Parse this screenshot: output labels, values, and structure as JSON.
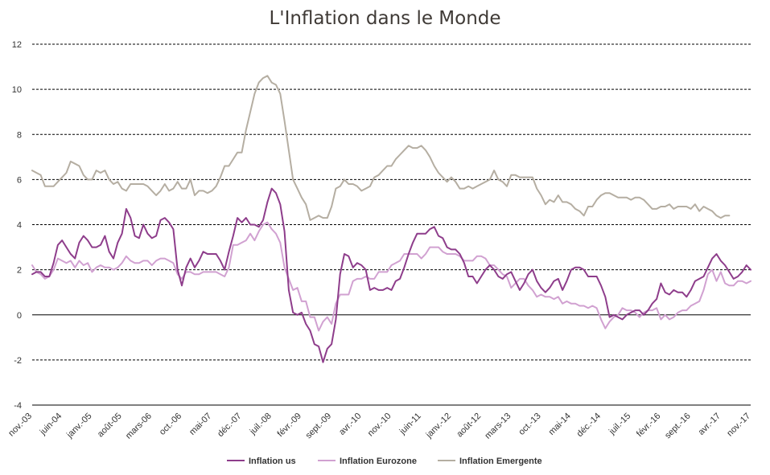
{
  "chart_data": {
    "type": "line",
    "title": "L'Inflation dans le Monde",
    "xlabel": "",
    "ylabel": "",
    "ylim": [
      -4,
      12
    ],
    "yticks": [
      "-4",
      "-2",
      "0",
      "2",
      "4",
      "6",
      "8",
      "10",
      "12"
    ],
    "grid": "horizontal dashed",
    "legend_position": "bottom",
    "x_start": "2003-11",
    "x_end": "2017-11",
    "tick_labels": [
      "nov.-03",
      "juin-04",
      "janv.-05",
      "août-05",
      "mars-06",
      "oct.-06",
      "mai-07",
      "déc.-07",
      "juil.-08",
      "févr.-09",
      "sept.-09",
      "avr.-10",
      "nov.-10",
      "juin-11",
      "janv.-12",
      "août-12",
      "mars-13",
      "oct.-13",
      "mai-14",
      "déc.-14",
      "juil.-15",
      "févr.-16",
      "sept.-16",
      "avr.-17",
      "nov.-17"
    ],
    "series": [
      {
        "name": "Inflation us",
        "color": "#8e3d8b",
        "values": [
          1.8,
          1.9,
          1.9,
          1.7,
          1.7,
          2.3,
          3.1,
          3.3,
          3.0,
          2.7,
          2.5,
          3.2,
          3.5,
          3.3,
          3.0,
          3.0,
          3.1,
          3.5,
          2.8,
          2.5,
          3.2,
          3.6,
          4.7,
          4.3,
          3.5,
          3.4,
          4.0,
          3.6,
          3.4,
          3.5,
          4.2,
          4.3,
          4.1,
          3.8,
          2.0,
          1.3,
          2.1,
          2.5,
          2.1,
          2.4,
          2.8,
          2.7,
          2.7,
          2.7,
          2.4,
          2.0,
          2.8,
          3.5,
          4.3,
          4.1,
          4.3,
          4.0,
          4.0,
          3.9,
          4.2,
          5.0,
          5.6,
          5.4,
          4.9,
          3.7,
          1.1,
          0.1,
          0.0,
          0.1,
          -0.4,
          -0.7,
          -1.3,
          -1.4,
          -2.1,
          -1.5,
          -1.3,
          -0.2,
          1.8,
          2.7,
          2.6,
          2.1,
          2.3,
          2.2,
          2.0,
          1.1,
          1.2,
          1.1,
          1.1,
          1.2,
          1.1,
          1.5,
          1.6,
          2.1,
          2.7,
          3.2,
          3.6,
          3.6,
          3.6,
          3.8,
          3.9,
          3.5,
          3.4,
          3.0,
          2.9,
          2.9,
          2.7,
          2.3,
          1.7,
          1.7,
          1.4,
          1.7,
          2.0,
          2.2,
          2.0,
          1.7,
          1.6,
          1.8,
          1.9,
          1.5,
          1.1,
          1.4,
          1.8,
          2.0,
          1.5,
          1.2,
          1.0,
          1.2,
          1.5,
          1.6,
          1.1,
          1.5,
          2.0,
          2.1,
          2.1,
          2.0,
          1.7,
          1.7,
          1.7,
          1.3,
          0.8,
          -0.1,
          0.0,
          -0.1,
          -0.2,
          0.0,
          0.1,
          0.2,
          0.2,
          0.0,
          0.2,
          0.5,
          0.7,
          1.4,
          1.0,
          0.9,
          1.1,
          1.0,
          1.0,
          0.8,
          1.1,
          1.5,
          1.6,
          1.7,
          2.1,
          2.5,
          2.7,
          2.4,
          2.2,
          1.9,
          1.6,
          1.7,
          1.9,
          2.2,
          2.0
        ]
      },
      {
        "name": "Inflation Eurozone",
        "color": "#d1a1d1",
        "values": [
          2.2,
          1.9,
          1.8,
          1.6,
          1.7,
          2.0,
          2.5,
          2.4,
          2.3,
          2.4,
          2.1,
          2.4,
          2.2,
          2.3,
          1.9,
          2.1,
          2.2,
          2.1,
          2.1,
          2.0,
          2.1,
          2.3,
          2.6,
          2.4,
          2.3,
          2.3,
          2.4,
          2.4,
          2.2,
          2.4,
          2.5,
          2.5,
          2.4,
          2.3,
          1.8,
          1.6,
          1.9,
          1.9,
          1.8,
          1.8,
          1.9,
          1.9,
          1.9,
          1.9,
          1.8,
          1.7,
          2.1,
          3.1,
          3.1,
          3.2,
          3.3,
          3.6,
          3.3,
          3.7,
          4.0,
          4.1,
          3.8,
          3.6,
          3.2,
          2.1,
          1.6,
          1.1,
          1.2,
          0.6,
          0.6,
          -0.1,
          -0.1,
          -0.7,
          -0.3,
          -0.1,
          -0.4,
          0.5,
          0.9,
          0.9,
          0.9,
          1.5,
          1.6,
          1.6,
          1.7,
          1.6,
          1.6,
          1.9,
          1.9,
          1.9,
          2.2,
          2.3,
          2.4,
          2.7,
          2.7,
          2.7,
          2.7,
          2.5,
          2.7,
          3.0,
          3.0,
          3.0,
          2.8,
          2.7,
          2.7,
          2.7,
          2.6,
          2.4,
          2.4,
          2.4,
          2.6,
          2.6,
          2.5,
          2.2,
          2.2,
          2.0,
          1.8,
          1.7,
          1.2,
          1.4,
          1.6,
          1.6,
          1.3,
          1.1,
          0.8,
          0.9,
          0.8,
          0.8,
          0.7,
          0.8,
          0.5,
          0.6,
          0.5,
          0.5,
          0.4,
          0.4,
          0.3,
          0.4,
          0.3,
          -0.2,
          -0.6,
          -0.3,
          -0.1,
          0.0,
          0.3,
          0.2,
          0.2,
          0.1,
          -0.1,
          0.1,
          0.2,
          0.2,
          0.3,
          -0.2,
          0.0,
          -0.2,
          -0.1,
          0.1,
          0.2,
          0.2,
          0.4,
          0.5,
          0.6,
          1.1,
          1.8,
          2.0,
          1.5,
          1.9,
          1.4,
          1.3,
          1.3,
          1.5,
          1.5,
          1.4,
          1.5
        ]
      },
      {
        "name": "Inflation Emergente",
        "color": "#b5aea2",
        "values": [
          6.4,
          6.3,
          6.2,
          5.7,
          5.7,
          5.7,
          5.9,
          6.1,
          6.3,
          6.8,
          6.7,
          6.6,
          6.2,
          6.0,
          6.0,
          6.4,
          6.3,
          6.4,
          6.0,
          5.8,
          5.9,
          5.6,
          5.5,
          5.8,
          5.8,
          5.8,
          5.8,
          5.7,
          5.5,
          5.3,
          5.5,
          5.8,
          5.5,
          5.6,
          5.9,
          5.6,
          5.6,
          6.0,
          5.3,
          5.5,
          5.5,
          5.4,
          5.5,
          5.7,
          6.1,
          6.6,
          6.6,
          6.9,
          7.2,
          7.2,
          8.2,
          9.0,
          9.8,
          10.3,
          10.5,
          10.6,
          10.3,
          10.2,
          9.8,
          8.6,
          7.3,
          6.0,
          5.6,
          5.2,
          4.9,
          4.2,
          4.3,
          4.4,
          4.3,
          4.3,
          4.8,
          5.6,
          5.7,
          6.0,
          5.8,
          5.8,
          5.7,
          5.5,
          5.6,
          5.7,
          6.1,
          6.2,
          6.4,
          6.6,
          6.6,
          6.9,
          7.1,
          7.3,
          7.5,
          7.4,
          7.4,
          7.5,
          7.3,
          7.0,
          6.6,
          6.3,
          6.1,
          5.9,
          6.1,
          5.9,
          5.6,
          5.6,
          5.7,
          5.6,
          5.7,
          5.8,
          5.9,
          6.0,
          6.4,
          6.0,
          5.9,
          5.7,
          6.2,
          6.2,
          6.1,
          6.1,
          6.1,
          6.1,
          5.6,
          5.3,
          4.9,
          5.1,
          5.0,
          5.3,
          5.0,
          5.0,
          4.9,
          4.7,
          4.6,
          4.4,
          4.8,
          4.8,
          5.1,
          5.3,
          5.4,
          5.4,
          5.3,
          5.2,
          5.2,
          5.2,
          5.1,
          5.2,
          5.2,
          5.1,
          4.9,
          4.7,
          4.7,
          4.8,
          4.8,
          4.9,
          4.7,
          4.8,
          4.8,
          4.8,
          4.7,
          4.9,
          4.6,
          4.8,
          4.7,
          4.6,
          4.4,
          4.3,
          4.4,
          4.4
        ]
      }
    ]
  }
}
